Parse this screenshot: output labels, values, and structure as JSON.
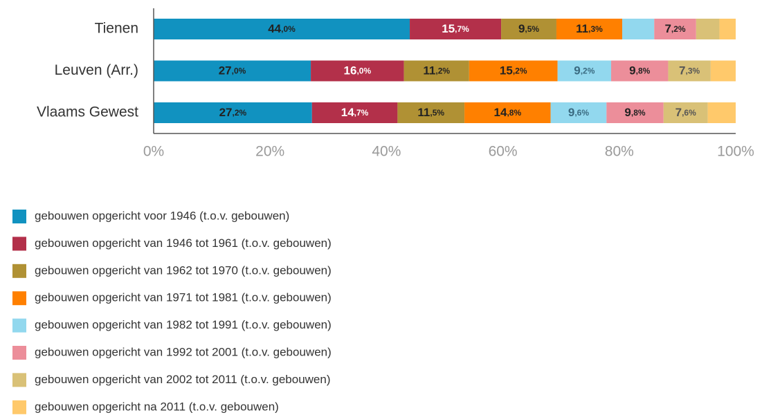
{
  "chart_data": {
    "type": "stacked_barh",
    "categories": [
      "Tienen",
      "Leuven (Arr.)",
      "Vlaams Gewest"
    ],
    "xlim": [
      0,
      100
    ],
    "xticks": [
      {
        "value": 0,
        "label": "0%"
      },
      {
        "value": 20,
        "label": "20%"
      },
      {
        "value": 40,
        "label": "40%"
      },
      {
        "value": 60,
        "label": "60%"
      },
      {
        "value": 80,
        "label": "80%"
      },
      {
        "value": 100,
        "label": "100%"
      }
    ],
    "series": [
      {
        "name": "gebouwen opgericht voor 1946 (t.o.v. gebouwen)",
        "color": "#1192c0",
        "label_color": "#222",
        "values": [
          44.0,
          27.0,
          27.2
        ],
        "value_labels": [
          "44,0%",
          "27,0%",
          "27,2%"
        ]
      },
      {
        "name": "gebouwen opgericht van 1946 tot 1961 (t.o.v. gebouwen)",
        "color": "#b3304a",
        "label_color": "#fff",
        "values": [
          15.7,
          16.0,
          14.7
        ],
        "value_labels": [
          "15,7%",
          "16,0%",
          "14,7%"
        ]
      },
      {
        "name": "gebouwen opgericht van 1962 tot 1970 (t.o.v. gebouwen)",
        "color": "#b09134",
        "label_color": "#222",
        "values": [
          9.5,
          11.2,
          11.5
        ],
        "value_labels": [
          "9,5%",
          "11,2%",
          "11,5%"
        ]
      },
      {
        "name": "gebouwen opgericht van 1971 tot 1981 (t.o.v. gebouwen)",
        "color": "#ff8000",
        "label_color": "#222",
        "values": [
          11.3,
          15.2,
          14.8
        ],
        "value_labels": [
          "11,3%",
          "15,2%",
          "14,8%"
        ]
      },
      {
        "name": "gebouwen opgericht van 1982 tot 1991 (t.o.v. gebouwen)",
        "color": "#92d8ee",
        "label_color": "#3a6a80",
        "values": [
          5.5,
          9.2,
          9.6
        ],
        "value_labels": [
          null,
          "9,2%",
          "9,6%"
        ]
      },
      {
        "name": "gebouwen opgericht van 1992 tot 2001 (t.o.v. gebouwen)",
        "color": "#ec8e9a",
        "label_color": "#222",
        "values": [
          7.2,
          9.8,
          9.8
        ],
        "value_labels": [
          "7,2%",
          "9,8%",
          "9,8%"
        ]
      },
      {
        "name": "gebouwen opgericht van 2002 tot 2011 (t.o.v. gebouwen)",
        "color": "#d9c177",
        "label_color": "#555",
        "values": [
          4.0,
          7.3,
          7.6
        ],
        "value_labels": [
          null,
          "7,3%",
          "7,6%"
        ]
      },
      {
        "name": "gebouwen opgericht na 2011 (t.o.v. gebouwen)",
        "color": "#ffc96b",
        "label_color": "#222",
        "values": [
          2.8,
          4.3,
          4.8
        ],
        "value_labels": [
          null,
          null,
          null
        ]
      }
    ]
  }
}
